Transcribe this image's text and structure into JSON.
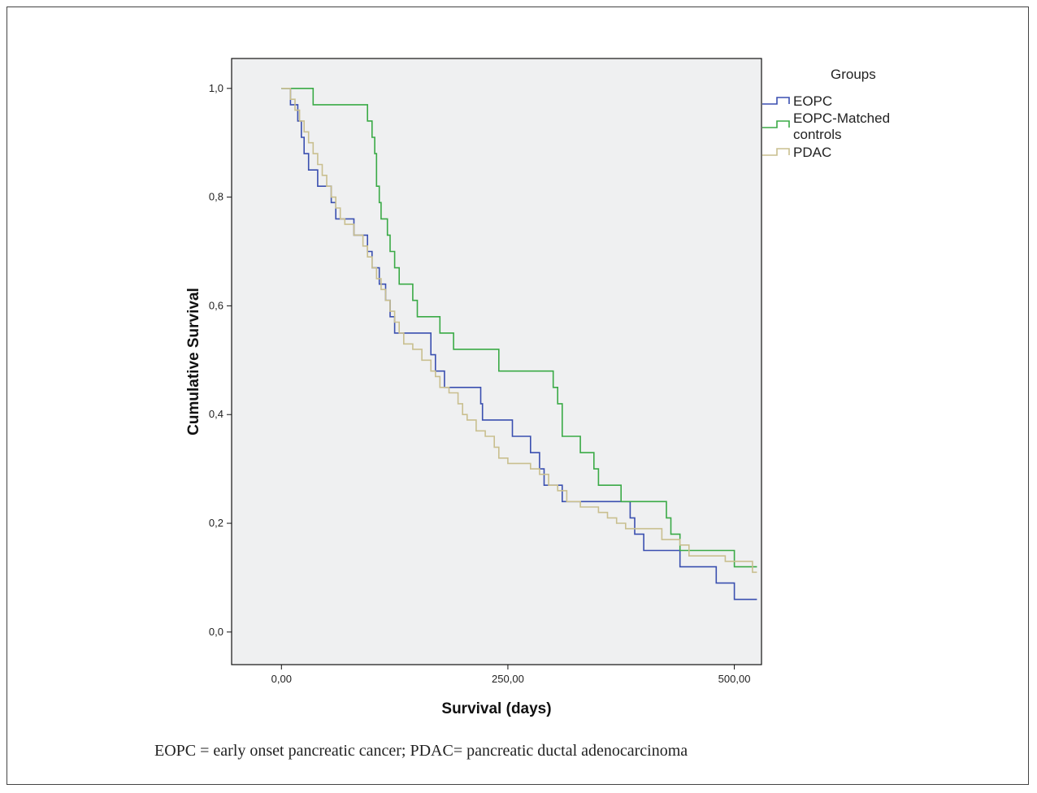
{
  "chart_data": {
    "type": "line",
    "step": true,
    "xlabel": "Survival (days)",
    "ylabel": "Cumulative Survival",
    "xlim": [
      -55,
      530
    ],
    "ylim": [
      -0.06,
      1.055
    ],
    "xticks": [
      0,
      250,
      500
    ],
    "xtick_labels": [
      "0,00",
      "250,00",
      "500,00"
    ],
    "yticks": [
      0.0,
      0.2,
      0.4,
      0.6,
      0.8,
      1.0
    ],
    "ytick_labels": [
      "0,0",
      "0,2",
      "0,4",
      "0,6",
      "0,8",
      "1,0"
    ],
    "grid": false,
    "plot_background": "#eff0f1",
    "legend": {
      "title": "Groups",
      "placement": "right",
      "entries": [
        "EOPC",
        "EOPC-Matched controls",
        "PDAC"
      ]
    },
    "series": [
      {
        "name": "EOPC",
        "color": "#3a4fb0",
        "points": [
          [
            0,
            1.0
          ],
          [
            10,
            1.0
          ],
          [
            10,
            0.97
          ],
          [
            18,
            0.97
          ],
          [
            18,
            0.94
          ],
          [
            22,
            0.94
          ],
          [
            22,
            0.91
          ],
          [
            25,
            0.91
          ],
          [
            25,
            0.88
          ],
          [
            30,
            0.88
          ],
          [
            30,
            0.85
          ],
          [
            40,
            0.85
          ],
          [
            40,
            0.82
          ],
          [
            55,
            0.82
          ],
          [
            55,
            0.79
          ],
          [
            60,
            0.79
          ],
          [
            60,
            0.76
          ],
          [
            80,
            0.76
          ],
          [
            80,
            0.73
          ],
          [
            95,
            0.73
          ],
          [
            95,
            0.7
          ],
          [
            100,
            0.7
          ],
          [
            100,
            0.67
          ],
          [
            108,
            0.67
          ],
          [
            108,
            0.64
          ],
          [
            115,
            0.64
          ],
          [
            115,
            0.61
          ],
          [
            120,
            0.61
          ],
          [
            120,
            0.58
          ],
          [
            125,
            0.58
          ],
          [
            125,
            0.55
          ],
          [
            165,
            0.55
          ],
          [
            165,
            0.51
          ],
          [
            170,
            0.51
          ],
          [
            170,
            0.48
          ],
          [
            180,
            0.48
          ],
          [
            180,
            0.45
          ],
          [
            220,
            0.45
          ],
          [
            220,
            0.42
          ],
          [
            222,
            0.42
          ],
          [
            222,
            0.39
          ],
          [
            255,
            0.39
          ],
          [
            255,
            0.36
          ],
          [
            275,
            0.36
          ],
          [
            275,
            0.33
          ],
          [
            285,
            0.33
          ],
          [
            285,
            0.3
          ],
          [
            290,
            0.3
          ],
          [
            290,
            0.27
          ],
          [
            310,
            0.27
          ],
          [
            310,
            0.24
          ],
          [
            385,
            0.24
          ],
          [
            385,
            0.21
          ],
          [
            390,
            0.21
          ],
          [
            390,
            0.18
          ],
          [
            400,
            0.18
          ],
          [
            400,
            0.15
          ],
          [
            440,
            0.15
          ],
          [
            440,
            0.12
          ],
          [
            480,
            0.12
          ],
          [
            480,
            0.09
          ],
          [
            500,
            0.09
          ],
          [
            500,
            0.06
          ],
          [
            525,
            0.06
          ]
        ]
      },
      {
        "name": "EOPC-Matched controls",
        "color": "#3aaa46",
        "points": [
          [
            0,
            1.0
          ],
          [
            35,
            1.0
          ],
          [
            35,
            0.97
          ],
          [
            95,
            0.97
          ],
          [
            95,
            0.94
          ],
          [
            100,
            0.94
          ],
          [
            100,
            0.91
          ],
          [
            103,
            0.91
          ],
          [
            103,
            0.88
          ],
          [
            105,
            0.88
          ],
          [
            105,
            0.82
          ],
          [
            108,
            0.82
          ],
          [
            108,
            0.79
          ],
          [
            110,
            0.79
          ],
          [
            110,
            0.76
          ],
          [
            117,
            0.76
          ],
          [
            117,
            0.73
          ],
          [
            120,
            0.73
          ],
          [
            120,
            0.7
          ],
          [
            125,
            0.7
          ],
          [
            125,
            0.67
          ],
          [
            130,
            0.67
          ],
          [
            130,
            0.64
          ],
          [
            145,
            0.64
          ],
          [
            145,
            0.61
          ],
          [
            150,
            0.61
          ],
          [
            150,
            0.58
          ],
          [
            175,
            0.58
          ],
          [
            175,
            0.55
          ],
          [
            190,
            0.55
          ],
          [
            190,
            0.52
          ],
          [
            240,
            0.52
          ],
          [
            240,
            0.48
          ],
          [
            300,
            0.48
          ],
          [
            300,
            0.45
          ],
          [
            305,
            0.45
          ],
          [
            305,
            0.42
          ],
          [
            310,
            0.42
          ],
          [
            310,
            0.36
          ],
          [
            330,
            0.36
          ],
          [
            330,
            0.33
          ],
          [
            345,
            0.33
          ],
          [
            345,
            0.3
          ],
          [
            350,
            0.3
          ],
          [
            350,
            0.27
          ],
          [
            375,
            0.27
          ],
          [
            375,
            0.24
          ],
          [
            425,
            0.24
          ],
          [
            425,
            0.21
          ],
          [
            430,
            0.21
          ],
          [
            430,
            0.18
          ],
          [
            440,
            0.18
          ],
          [
            440,
            0.15
          ],
          [
            500,
            0.15
          ],
          [
            500,
            0.12
          ],
          [
            525,
            0.12
          ]
        ]
      },
      {
        "name": "PDAC",
        "color": "#c9bf8f",
        "points": [
          [
            0,
            1.0
          ],
          [
            10,
            1.0
          ],
          [
            10,
            0.98
          ],
          [
            15,
            0.98
          ],
          [
            15,
            0.96
          ],
          [
            20,
            0.96
          ],
          [
            20,
            0.94
          ],
          [
            25,
            0.94
          ],
          [
            25,
            0.92
          ],
          [
            30,
            0.92
          ],
          [
            30,
            0.9
          ],
          [
            35,
            0.9
          ],
          [
            35,
            0.88
          ],
          [
            40,
            0.88
          ],
          [
            40,
            0.86
          ],
          [
            45,
            0.86
          ],
          [
            45,
            0.84
          ],
          [
            50,
            0.84
          ],
          [
            50,
            0.82
          ],
          [
            55,
            0.82
          ],
          [
            55,
            0.8
          ],
          [
            60,
            0.8
          ],
          [
            60,
            0.78
          ],
          [
            65,
            0.78
          ],
          [
            65,
            0.76
          ],
          [
            70,
            0.76
          ],
          [
            70,
            0.75
          ],
          [
            80,
            0.75
          ],
          [
            80,
            0.73
          ],
          [
            90,
            0.73
          ],
          [
            90,
            0.71
          ],
          [
            95,
            0.71
          ],
          [
            95,
            0.69
          ],
          [
            100,
            0.69
          ],
          [
            100,
            0.67
          ],
          [
            105,
            0.67
          ],
          [
            105,
            0.65
          ],
          [
            110,
            0.65
          ],
          [
            110,
            0.63
          ],
          [
            115,
            0.63
          ],
          [
            115,
            0.61
          ],
          [
            120,
            0.61
          ],
          [
            120,
            0.59
          ],
          [
            125,
            0.59
          ],
          [
            125,
            0.57
          ],
          [
            130,
            0.57
          ],
          [
            130,
            0.55
          ],
          [
            135,
            0.55
          ],
          [
            135,
            0.53
          ],
          [
            145,
            0.53
          ],
          [
            145,
            0.52
          ],
          [
            155,
            0.52
          ],
          [
            155,
            0.5
          ],
          [
            165,
            0.5
          ],
          [
            165,
            0.48
          ],
          [
            170,
            0.48
          ],
          [
            170,
            0.47
          ],
          [
            175,
            0.47
          ],
          [
            175,
            0.45
          ],
          [
            185,
            0.45
          ],
          [
            185,
            0.44
          ],
          [
            195,
            0.44
          ],
          [
            195,
            0.42
          ],
          [
            200,
            0.42
          ],
          [
            200,
            0.4
          ],
          [
            205,
            0.4
          ],
          [
            205,
            0.39
          ],
          [
            215,
            0.39
          ],
          [
            215,
            0.37
          ],
          [
            225,
            0.37
          ],
          [
            225,
            0.36
          ],
          [
            235,
            0.36
          ],
          [
            235,
            0.34
          ],
          [
            240,
            0.34
          ],
          [
            240,
            0.32
          ],
          [
            250,
            0.32
          ],
          [
            250,
            0.31
          ],
          [
            275,
            0.31
          ],
          [
            275,
            0.3
          ],
          [
            285,
            0.3
          ],
          [
            285,
            0.29
          ],
          [
            295,
            0.29
          ],
          [
            295,
            0.27
          ],
          [
            305,
            0.27
          ],
          [
            305,
            0.26
          ],
          [
            315,
            0.26
          ],
          [
            315,
            0.24
          ],
          [
            330,
            0.24
          ],
          [
            330,
            0.23
          ],
          [
            350,
            0.23
          ],
          [
            350,
            0.22
          ],
          [
            360,
            0.22
          ],
          [
            360,
            0.21
          ],
          [
            370,
            0.21
          ],
          [
            370,
            0.2
          ],
          [
            380,
            0.2
          ],
          [
            380,
            0.19
          ],
          [
            420,
            0.19
          ],
          [
            420,
            0.17
          ],
          [
            440,
            0.17
          ],
          [
            440,
            0.16
          ],
          [
            450,
            0.16
          ],
          [
            450,
            0.14
          ],
          [
            490,
            0.14
          ],
          [
            490,
            0.13
          ],
          [
            520,
            0.13
          ],
          [
            520,
            0.11
          ],
          [
            525,
            0.11
          ]
        ]
      }
    ]
  },
  "caption": "EOPC = early onset pancreatic cancer; PDAC= pancreatic ductal adenocarcinoma"
}
